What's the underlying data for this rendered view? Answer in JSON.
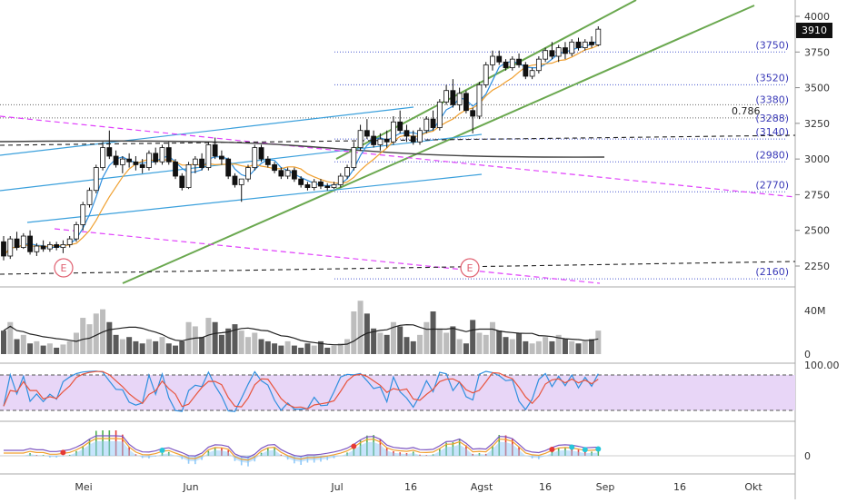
{
  "chart_data": {
    "type": "candlestick",
    "price_axis_ticks": [
      "4000",
      "3750",
      "3500",
      "3250",
      "3000",
      "2750",
      "2500",
      "2250"
    ],
    "last_price_label": "3910",
    "levels": [
      {
        "label": "(3750)",
        "value": 3750
      },
      {
        "label": "(3520)",
        "value": 3520
      },
      {
        "label": "(3380)",
        "value": 3380
      },
      {
        "label": "(3288)",
        "value": 3288
      },
      {
        "label": "(3140)",
        "value": 3140
      },
      {
        "label": "(2980)",
        "value": 2980
      },
      {
        "label": "(2770)",
        "value": 2770
      },
      {
        "label": "(2160)",
        "value": 2160
      }
    ],
    "fib_label": "0.786",
    "earnings_markers": [
      "E",
      "E"
    ],
    "x_axis_labels": [
      "Mei",
      "Jun",
      "Jul",
      "16",
      "Agst",
      "16",
      "Sep",
      "16",
      "Okt"
    ],
    "candles": [
      [
        2420,
        2460,
        2290,
        2320
      ],
      [
        2320,
        2460,
        2300,
        2440
      ],
      [
        2440,
        2490,
        2360,
        2380
      ],
      [
        2380,
        2480,
        2370,
        2460
      ],
      [
        2460,
        2500,
        2330,
        2350
      ],
      [
        2350,
        2410,
        2320,
        2390
      ],
      [
        2390,
        2430,
        2350,
        2370
      ],
      [
        2370,
        2420,
        2350,
        2400
      ],
      [
        2400,
        2420,
        2360,
        2380
      ],
      [
        2380,
        2430,
        2340,
        2400
      ],
      [
        2400,
        2460,
        2380,
        2440
      ],
      [
        2440,
        2560,
        2420,
        2540
      ],
      [
        2540,
        2700,
        2500,
        2680
      ],
      [
        2680,
        2800,
        2660,
        2780
      ],
      [
        2780,
        2960,
        2760,
        2940
      ],
      [
        2940,
        3120,
        2920,
        3080
      ],
      [
        3080,
        3200,
        3000,
        3020
      ],
      [
        3020,
        3060,
        2940,
        2960
      ],
      [
        2960,
        3020,
        2900,
        3000
      ],
      [
        3000,
        3040,
        2940,
        2980
      ],
      [
        2980,
        3020,
        2920,
        2960
      ],
      [
        2960,
        3000,
        2900,
        2940
      ],
      [
        2940,
        3060,
        2920,
        3040
      ],
      [
        3040,
        3080,
        2960,
        2980
      ],
      [
        2980,
        3100,
        2960,
        3080
      ],
      [
        3080,
        3120,
        2960,
        2980
      ],
      [
        2980,
        3000,
        2860,
        2880
      ],
      [
        2880,
        2900,
        2780,
        2800
      ],
      [
        2800,
        2980,
        2790,
        2960
      ],
      [
        2960,
        3020,
        2900,
        3000
      ],
      [
        3000,
        3040,
        2920,
        2940
      ],
      [
        2940,
        3120,
        2920,
        3100
      ],
      [
        3100,
        3150,
        3000,
        3020
      ],
      [
        3020,
        3060,
        2960,
        3000
      ],
      [
        3000,
        3010,
        2860,
        2880
      ],
      [
        2880,
        2900,
        2800,
        2820
      ],
      [
        2820,
        2860,
        2700,
        2860
      ],
      [
        2860,
        2960,
        2840,
        2940
      ],
      [
        2940,
        3100,
        2920,
        3080
      ],
      [
        3080,
        3100,
        2980,
        3000
      ],
      [
        3000,
        3020,
        2940,
        2960
      ],
      [
        2960,
        2980,
        2900,
        2920
      ],
      [
        2920,
        2940,
        2860,
        2880
      ],
      [
        2880,
        2940,
        2860,
        2920
      ],
      [
        2920,
        2940,
        2840,
        2860
      ],
      [
        2860,
        2880,
        2800,
        2820
      ],
      [
        2820,
        2840,
        2780,
        2800
      ],
      [
        2800,
        2860,
        2780,
        2840
      ],
      [
        2840,
        2860,
        2790,
        2810
      ],
      [
        2810,
        2830,
        2780,
        2800
      ],
      [
        2800,
        2840,
        2790,
        2820
      ],
      [
        2820,
        2900,
        2800,
        2880
      ],
      [
        2880,
        2960,
        2860,
        2940
      ],
      [
        2940,
        3120,
        2920,
        3080
      ],
      [
        3080,
        3240,
        3060,
        3200
      ],
      [
        3200,
        3280,
        3140,
        3160
      ],
      [
        3160,
        3200,
        3080,
        3100
      ],
      [
        3100,
        3180,
        3060,
        3140
      ],
      [
        3140,
        3200,
        3080,
        3120
      ],
      [
        3120,
        3300,
        3100,
        3260
      ],
      [
        3260,
        3340,
        3180,
        3200
      ],
      [
        3200,
        3240,
        3120,
        3160
      ],
      [
        3160,
        3200,
        3100,
        3120
      ],
      [
        3120,
        3220,
        3100,
        3200
      ],
      [
        3200,
        3300,
        3180,
        3280
      ],
      [
        3280,
        3340,
        3200,
        3220
      ],
      [
        3220,
        3420,
        3200,
        3400
      ],
      [
        3400,
        3520,
        3380,
        3480
      ],
      [
        3480,
        3560,
        3360,
        3380
      ],
      [
        3380,
        3500,
        3340,
        3460
      ],
      [
        3460,
        3480,
        3320,
        3340
      ],
      [
        3340,
        3360,
        3180,
        3300
      ],
      [
        3300,
        3540,
        3280,
        3520
      ],
      [
        3520,
        3680,
        3500,
        3660
      ],
      [
        3660,
        3760,
        3620,
        3720
      ],
      [
        3720,
        3760,
        3660,
        3680
      ],
      [
        3680,
        3700,
        3620,
        3640
      ],
      [
        3640,
        3720,
        3620,
        3700
      ],
      [
        3700,
        3740,
        3640,
        3660
      ],
      [
        3660,
        3680,
        3560,
        3580
      ],
      [
        3580,
        3640,
        3560,
        3620
      ],
      [
        3620,
        3720,
        3600,
        3700
      ],
      [
        3700,
        3780,
        3680,
        3760
      ],
      [
        3760,
        3820,
        3700,
        3720
      ],
      [
        3720,
        3800,
        3680,
        3780
      ],
      [
        3780,
        3820,
        3700,
        3740
      ],
      [
        3740,
        3840,
        3720,
        3820
      ],
      [
        3820,
        3850,
        3760,
        3780
      ],
      [
        3780,
        3840,
        3760,
        3820
      ],
      [
        3820,
        3860,
        3780,
        3800
      ],
      [
        3800,
        3930,
        3790,
        3910
      ]
    ],
    "volume_axis_ticks": [
      "40M",
      "0"
    ],
    "volume": [
      22,
      30,
      14,
      18,
      10,
      12,
      8,
      10,
      6,
      9,
      12,
      20,
      34,
      28,
      38,
      42,
      30,
      18,
      14,
      16,
      12,
      10,
      14,
      12,
      16,
      10,
      8,
      12,
      30,
      26,
      16,
      34,
      30,
      18,
      24,
      28,
      22,
      16,
      20,
      14,
      12,
      10,
      8,
      12,
      8,
      6,
      10,
      8,
      12,
      6,
      8,
      10,
      14,
      40,
      50,
      38,
      24,
      20,
      18,
      30,
      26,
      16,
      12,
      18,
      30,
      40,
      24,
      20,
      26,
      14,
      10,
      32,
      20,
      18,
      30,
      22,
      16,
      14,
      20,
      12,
      10,
      12,
      16,
      12,
      18,
      14,
      12,
      10,
      12,
      14,
      22
    ],
    "stochastic_axis_tick": "100.00",
    "macd_axis_tick": "0"
  }
}
